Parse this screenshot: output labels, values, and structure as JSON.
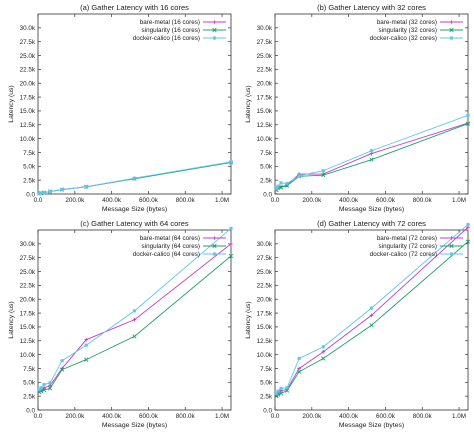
{
  "figure": {
    "colors": {
      "bare-metal": "#c23fc8",
      "singularity": "#22a06b",
      "docker-calico": "#5fc6ea"
    }
  },
  "chart_data": [
    {
      "type": "line",
      "title": "(a) Gather Latency with 16 cores",
      "xlabel": "Message Size (bytes)",
      "ylabel": "Latency (us)",
      "xlim": [
        0,
        1048576
      ],
      "ylim": [
        0,
        32500
      ],
      "xticks": [
        0,
        200000,
        400000,
        600000,
        800000,
        1000000
      ],
      "xtick_labels": [
        "0.0",
        "200.0k",
        "400.0k",
        "600.0k",
        "800.0k",
        "1.0M"
      ],
      "yticks": [
        0,
        2500,
        5000,
        7500,
        10000,
        12500,
        15000,
        17500,
        20000,
        22500,
        25000,
        27500,
        30000
      ],
      "ytick_labels": [
        "0.0",
        "2.5k",
        "5.0k",
        "7.5k",
        "10.0k",
        "12.5k",
        "15.0k",
        "17.5k",
        "20.0k",
        "22.5k",
        "25.0k",
        "27.5k",
        "30.0k"
      ],
      "legend_position": "top-right",
      "grid": false,
      "x": [
        8192,
        16384,
        32768,
        65536,
        131072,
        262144,
        524288,
        1048576
      ],
      "series": [
        {
          "name": "bare-metal (16 cores)",
          "values": [
            100,
            150,
            250,
            450,
            800,
            1300,
            2800,
            5700
          ]
        },
        {
          "name": "singularity (16 cores)",
          "values": [
            100,
            150,
            250,
            450,
            800,
            1300,
            2750,
            5700
          ]
        },
        {
          "name": "docker-calico (16 cores)",
          "values": [
            100,
            150,
            250,
            450,
            800,
            1300,
            2850,
            5800
          ]
        }
      ]
    },
    {
      "type": "line",
      "title": "(b) Gather Latency with 32 cores",
      "xlabel": "Message Size (bytes)",
      "ylabel": "Latency (us)",
      "xlim": [
        0,
        1048576
      ],
      "ylim": [
        0,
        32500
      ],
      "xticks": [
        0,
        200000,
        400000,
        600000,
        800000,
        1000000
      ],
      "xtick_labels": [
        "0.0",
        "200.0k",
        "400.0k",
        "600.0k",
        "800.0k",
        "1.0M"
      ],
      "yticks": [
        0,
        2500,
        5000,
        7500,
        10000,
        12500,
        15000,
        17500,
        20000,
        22500,
        25000,
        27500,
        30000
      ],
      "ytick_labels": [
        "0.0",
        "2.5k",
        "5.0k",
        "7.5k",
        "10.0k",
        "12.5k",
        "15.0k",
        "17.5k",
        "20.0k",
        "22.5k",
        "25.0k",
        "27.5k",
        "30.0k"
      ],
      "legend_position": "top-right",
      "grid": false,
      "x": [
        8192,
        16384,
        32768,
        65536,
        131072,
        262144,
        524288,
        1048576
      ],
      "series": [
        {
          "name": "bare-metal (32 cores)",
          "values": [
            800,
            1200,
            1300,
            1600,
            3600,
            3600,
            7300,
            12800
          ]
        },
        {
          "name": "singularity (32 cores)",
          "values": [
            700,
            1100,
            1200,
            1500,
            3200,
            3400,
            6200,
            12700
          ]
        },
        {
          "name": "docker-calico (32 cores)",
          "values": [
            1000,
            1400,
            2000,
            1900,
            3300,
            4200,
            7800,
            14200
          ]
        }
      ]
    },
    {
      "type": "line",
      "title": "(c) Gather Latency with 64 cores",
      "xlabel": "Message Size (bytes)",
      "ylabel": "Latency (us)",
      "xlim": [
        0,
        1048576
      ],
      "ylim": [
        0,
        32500
      ],
      "xticks": [
        0,
        200000,
        400000,
        600000,
        800000,
        1000000
      ],
      "xtick_labels": [
        "0.0",
        "200.0k",
        "400.0k",
        "600.0k",
        "800.0k",
        "1.0M"
      ],
      "yticks": [
        0,
        2500,
        5000,
        7500,
        10000,
        12500,
        15000,
        17500,
        20000,
        22500,
        25000,
        27500,
        30000
      ],
      "ytick_labels": [
        "0.0",
        "2.5k",
        "5.0k",
        "7.5k",
        "10.0k",
        "12.5k",
        "15.0k",
        "17.5k",
        "20.0k",
        "22.5k",
        "25.0k",
        "27.5k",
        "30.0k"
      ],
      "legend_position": "top-right",
      "grid": false,
      "x": [
        8192,
        16384,
        32768,
        65536,
        131072,
        262144,
        524288,
        1048576
      ],
      "series": [
        {
          "name": "bare-metal (64 cores)",
          "values": [
            3500,
            3600,
            4000,
            4400,
            7500,
            12700,
            16300,
            30000
          ]
        },
        {
          "name": "singularity (64 cores)",
          "values": [
            3200,
            3400,
            3600,
            3900,
            7300,
            9100,
            13300,
            27800
          ]
        },
        {
          "name": "docker-calico (64 cores)",
          "values": [
            3700,
            4000,
            4600,
            4900,
            8900,
            11700,
            17900,
            32800
          ]
        }
      ]
    },
    {
      "type": "line",
      "title": "(d) Gather Latency with 72 cores",
      "xlabel": "Message Size (bytes)",
      "ylabel": "Latency (us)",
      "xlim": [
        0,
        1048576
      ],
      "ylim": [
        0,
        32500
      ],
      "xticks": [
        0,
        200000,
        400000,
        600000,
        800000,
        1000000
      ],
      "xtick_labels": [
        "0.0",
        "200.0k",
        "400.0k",
        "600.0k",
        "800.0k",
        "1.0M"
      ],
      "yticks": [
        0,
        2500,
        5000,
        7500,
        10000,
        12500,
        15000,
        17500,
        20000,
        22500,
        25000,
        27500,
        30000
      ],
      "ytick_labels": [
        "0.0",
        "2.5k",
        "5.0k",
        "7.5k",
        "10.0k",
        "12.5k",
        "15.0k",
        "17.5k",
        "20.0k",
        "22.5k",
        "25.0k",
        "27.5k",
        "30.0k"
      ],
      "legend_position": "top-right",
      "grid": false,
      "x": [
        8192,
        16384,
        32768,
        65536,
        131072,
        262144,
        524288,
        1048576
      ],
      "series": [
        {
          "name": "bare-metal (72 cores)",
          "values": [
            2700,
            3000,
            3500,
            3700,
            7500,
            10500,
            17100,
            33000
          ]
        },
        {
          "name": "singularity (72 cores)",
          "values": [
            2500,
            2800,
            3000,
            3500,
            6900,
            9300,
            15300,
            30400
          ]
        },
        {
          "name": "docker-calico (72 cores)",
          "values": [
            3000,
            3400,
            3900,
            4000,
            9300,
            11400,
            18400,
            33500
          ]
        }
      ]
    }
  ]
}
